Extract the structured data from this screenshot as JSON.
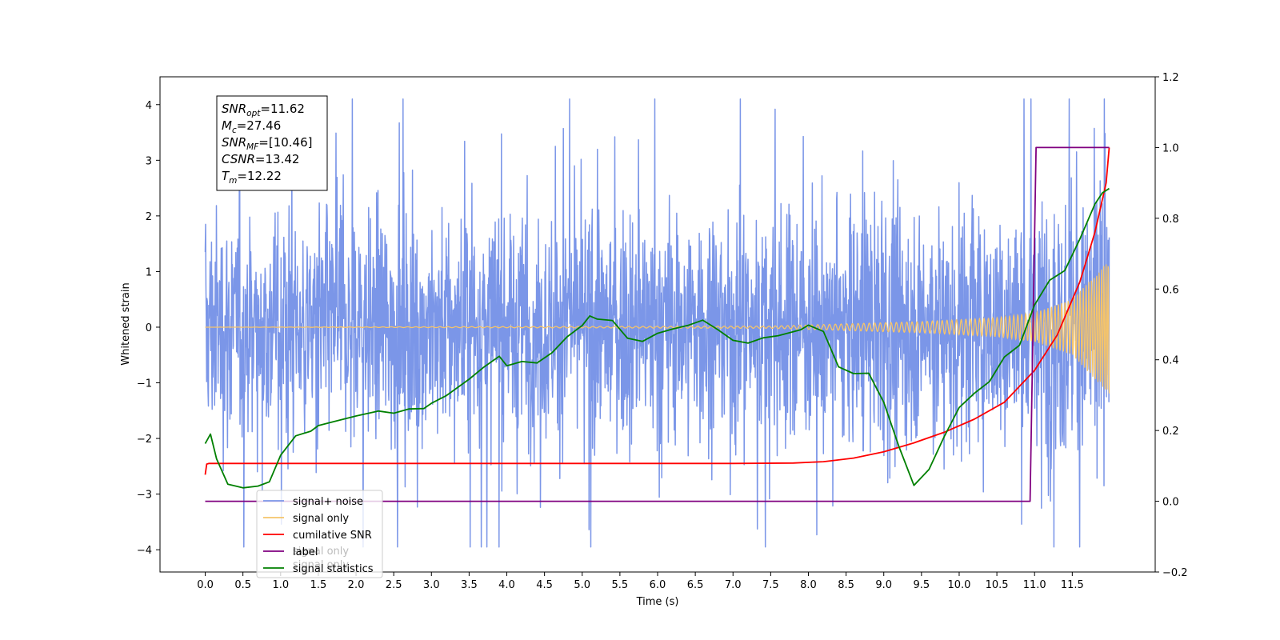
{
  "chart_data": {
    "type": "line",
    "xlabel": "Time (s)",
    "ylabel": "Whitened strain",
    "xlim": [
      -0.6,
      12.6
    ],
    "ylim_left": [
      -4.4,
      4.5
    ],
    "ylim_right": [
      -0.2,
      1.2
    ],
    "x_ticks": [
      "0.0",
      "0.5",
      "1.0",
      "1.5",
      "2.0",
      "2.5",
      "3.0",
      "3.5",
      "4.0",
      "4.5",
      "5.0",
      "5.5",
      "6.0",
      "6.5",
      "7.0",
      "7.5",
      "8.0",
      "8.5",
      "9.0",
      "9.5",
      "10.0",
      "10.5",
      "11.0",
      "11.5"
    ],
    "y_left_ticks": [
      "4",
      "3",
      "2",
      "1",
      "0",
      "−1",
      "−2",
      "−3",
      "−4"
    ],
    "y_right_ticks": [
      "1.2",
      "1.0",
      "0.8",
      "0.6",
      "0.4",
      "0.2",
      "0.0",
      "−0.2"
    ],
    "grid": false,
    "legend_position": "lower-left",
    "legend": [
      {
        "label": "signal+ noise",
        "color": "#7b96e8"
      },
      {
        "label": "signal only",
        "color": "#f5c46a"
      },
      {
        "label": "cumilative SNR",
        "color": "#ff0000"
      },
      {
        "label": "label",
        "color": "#800080"
      },
      {
        "label": "signal statistics",
        "color": "#008000"
      }
    ],
    "legend_hidden_text": [
      "signal only",
      "signal only"
    ],
    "annotation": [
      {
        "base": "SNR",
        "sub": "opt",
        "value": "=11.62"
      },
      {
        "base": "M",
        "sub": "c",
        "value": "=27.46"
      },
      {
        "base": "SNR",
        "sub": "MF",
        "value": "=[10.46]"
      },
      {
        "base": "CSNR",
        "sub": "",
        "value": "=13.42"
      },
      {
        "base": "T",
        "sub": "m",
        "value": "=12.22"
      }
    ],
    "series": [
      {
        "name": "signal+ noise",
        "axis": "left",
        "color": "#7b96e8",
        "description_only": true,
        "x_range": [
          0.0,
          11.99
        ],
        "envelope": {
          "x": [
            0,
            2,
            4,
            6,
            8,
            10,
            11,
            11.99
          ],
          "amplitude": [
            1.3,
            1.3,
            1.3,
            1.3,
            1.3,
            1.35,
            1.45,
            1.7
          ]
        }
      },
      {
        "name": "signal only",
        "axis": "left",
        "color": "#f5c46a",
        "description_only": true,
        "x_range": [
          0.0,
          11.99
        ],
        "envelope": {
          "x": [
            0,
            7.5,
            8.5,
            9.5,
            10.5,
            11.0,
            11.5,
            11.99
          ],
          "amplitude": [
            0.0,
            0.02,
            0.06,
            0.1,
            0.17,
            0.26,
            0.5,
            1.2
          ]
        }
      },
      {
        "name": "cumilative SNR",
        "axis": "right",
        "x": [
          0.0,
          0.02,
          0.05,
          1.0,
          2.0,
          3.0,
          4.0,
          5.0,
          6.0,
          7.0,
          7.8,
          8.2,
          8.6,
          9.0,
          9.4,
          9.8,
          10.2,
          10.6,
          11.0,
          11.3,
          11.6,
          11.8,
          11.95,
          11.99
        ],
        "y": [
          0.075,
          0.105,
          0.107,
          0.107,
          0.107,
          0.107,
          0.107,
          0.107,
          0.107,
          0.107,
          0.108,
          0.112,
          0.122,
          0.14,
          0.165,
          0.195,
          0.232,
          0.28,
          0.37,
          0.47,
          0.62,
          0.76,
          0.9,
          1.0
        ]
      },
      {
        "name": "label",
        "axis": "right",
        "x": [
          0.0,
          10.94,
          11.02,
          11.99
        ],
        "y": [
          0.0,
          0.0,
          1.0,
          1.0
        ]
      },
      {
        "name": "signal statistics",
        "axis": "right",
        "x": [
          0.0,
          0.07,
          0.15,
          0.3,
          0.5,
          0.7,
          0.85,
          1.0,
          1.2,
          1.4,
          1.5,
          1.7,
          2.0,
          2.3,
          2.5,
          2.7,
          2.9,
          3.0,
          3.2,
          3.5,
          3.7,
          3.9,
          4.0,
          4.2,
          4.4,
          4.6,
          4.8,
          5.0,
          5.1,
          5.2,
          5.4,
          5.6,
          5.8,
          6.0,
          6.2,
          6.4,
          6.6,
          6.8,
          7.0,
          7.2,
          7.4,
          7.6,
          7.9,
          8.0,
          8.2,
          8.4,
          8.6,
          8.8,
          9.0,
          9.2,
          9.4,
          9.6,
          9.8,
          10.0,
          10.2,
          10.4,
          10.6,
          10.8,
          11.0,
          11.2,
          11.4,
          11.6,
          11.8,
          11.9,
          11.99
        ],
        "y": [
          0.163,
          0.19,
          0.12,
          0.048,
          0.038,
          0.043,
          0.055,
          0.13,
          0.185,
          0.198,
          0.214,
          0.225,
          0.241,
          0.255,
          0.249,
          0.261,
          0.262,
          0.277,
          0.299,
          0.345,
          0.38,
          0.41,
          0.383,
          0.395,
          0.391,
          0.42,
          0.465,
          0.497,
          0.524,
          0.515,
          0.511,
          0.461,
          0.452,
          0.475,
          0.487,
          0.497,
          0.512,
          0.485,
          0.455,
          0.447,
          0.462,
          0.468,
          0.485,
          0.498,
          0.48,
          0.38,
          0.361,
          0.362,
          0.28,
          0.155,
          0.045,
          0.09,
          0.182,
          0.265,
          0.305,
          0.338,
          0.408,
          0.441,
          0.555,
          0.625,
          0.652,
          0.741,
          0.84,
          0.872,
          0.884
        ]
      }
    ]
  }
}
